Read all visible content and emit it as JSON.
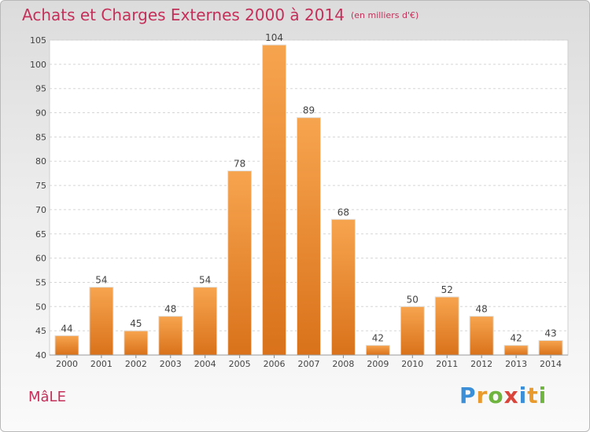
{
  "title": "Achats et Charges Externes 2000 à 2014",
  "subtitle": "(en milliers d'€)",
  "commune": "MâLE",
  "brand": {
    "letters": [
      "P",
      "r",
      "o",
      "x",
      "i",
      "t",
      "i"
    ],
    "colors": [
      "#3b8fd9",
      "#e89b2c",
      "#6fb43f",
      "#d9453b",
      "#3b8fd9",
      "#e89b2c",
      "#6fb43f"
    ]
  },
  "colors": {
    "bar_light": "#f7a44f",
    "bar_dark": "#d9721a",
    "accent": "#c4305a"
  },
  "chart_data": {
    "type": "bar",
    "categories": [
      "2000",
      "2001",
      "2002",
      "2003",
      "2004",
      "2005",
      "2006",
      "2007",
      "2008",
      "2009",
      "2010",
      "2011",
      "2012",
      "2013",
      "2014"
    ],
    "values": [
      44,
      54,
      45,
      48,
      54,
      78,
      104,
      89,
      68,
      42,
      50,
      52,
      48,
      42,
      43
    ],
    "ylim": [
      40,
      105
    ],
    "yticks": [
      40,
      45,
      50,
      55,
      60,
      65,
      70,
      75,
      80,
      85,
      90,
      95,
      100,
      105
    ],
    "grid": true
  }
}
